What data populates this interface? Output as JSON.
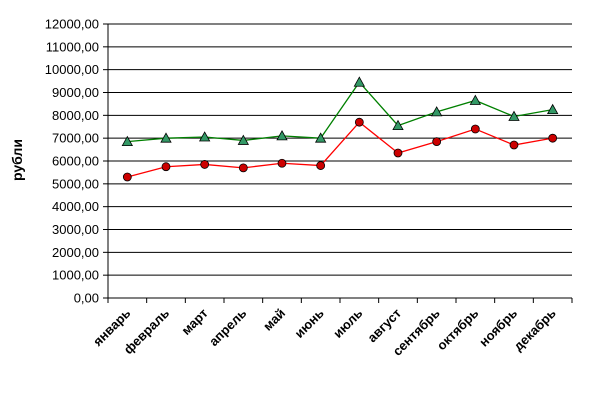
{
  "chart_data": {
    "type": "line",
    "title": "",
    "xlabel": "",
    "ylabel": "рубли",
    "categories": [
      "январь",
      "февраль",
      "март",
      "апрель",
      "май",
      "июнь",
      "июль",
      "август",
      "сентябрь",
      "октябрь",
      "ноябрь",
      "декабрь"
    ],
    "ylim": [
      0,
      12000
    ],
    "ytick_labels": [
      "0,00",
      "1000,00",
      "2000,00",
      "3000,00",
      "4000,00",
      "5000,00",
      "6000,00",
      "7000,00",
      "8000,00",
      "9000,00",
      "10000,00",
      "11000,00",
      "12000,00"
    ],
    "grid": true,
    "legend": "none",
    "series": [
      {
        "color": "#008000",
        "marker": "triangle",
        "marker_color": "#339966",
        "values": [
          6850,
          7000,
          7050,
          6900,
          7100,
          7000,
          9450,
          7550,
          8150,
          8650,
          7950,
          8250
        ]
      },
      {
        "color": "#ff0000",
        "marker": "circle",
        "marker_color": "#cc0000",
        "values": [
          5300,
          5750,
          5850,
          5700,
          5900,
          5800,
          7700,
          6350,
          6850,
          7400,
          6700,
          7000
        ]
      }
    ]
  }
}
